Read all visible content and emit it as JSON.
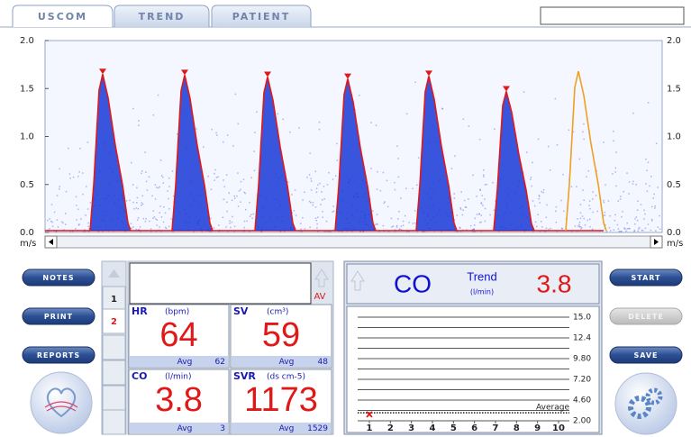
{
  "tabs": [
    "USCOM",
    "TREND",
    "PATIENT"
  ],
  "doppler": {
    "ylim": [
      0,
      2
    ],
    "yticks": [
      {
        "value": 0,
        "label": "0.0"
      },
      {
        "value": 0.5,
        "label": "0.5"
      },
      {
        "value": 1,
        "label": "1.0"
      },
      {
        "value": 1.5,
        "label": "1.5"
      },
      {
        "value": 2,
        "label": "2.0"
      }
    ],
    "unit": "m/s",
    "peaks": [
      1.65,
      1.64,
      1.62,
      1.6,
      1.63,
      1.47,
      1.68
    ],
    "envelope_color": "#e01818",
    "current_color": "#f0a020",
    "spectrum_color": "#1838d8"
  },
  "buttons_left": [
    "NOTES",
    "PRINT",
    "REPORTS"
  ],
  "buttons_right": [
    "START",
    "DELETE",
    "SAVE"
  ],
  "beat_list": [
    1,
    2
  ],
  "flow_label": "AV",
  "params": [
    {
      "name": "HR",
      "unit": "(bpm)",
      "value": 64,
      "avg_label": "Avg",
      "avg": 62
    },
    {
      "name": "SV",
      "unit": "(cm³)",
      "value": 59,
      "avg_label": "Avg",
      "avg": 48
    },
    {
      "name": "CO",
      "unit": "(l/min)",
      "value": 3.8,
      "avg_label": "Avg",
      "avg": 3
    },
    {
      "name": "SVR",
      "unit": "(ds cm-5)",
      "value": 1173,
      "avg_label": "Avg",
      "avg": 1529
    }
  ],
  "trend": {
    "param": "CO",
    "label": "Trend",
    "unit": "(l/min)",
    "value": 3.8,
    "ylim": [
      2,
      15
    ],
    "yticks": [
      {
        "value": 15,
        "label": "15.0"
      },
      12.4,
      {
        "value": 9.8,
        "label": "9.80"
      },
      {
        "value": 7.2,
        "label": "7.20"
      },
      {
        "value": 4.6,
        "label": "4.60"
      },
      {
        "value": 2,
        "label": "2.00"
      }
    ],
    "xticks": [
      1,
      2,
      3,
      4,
      5,
      6,
      7,
      8,
      9,
      10
    ],
    "average_label": "Average",
    "average": 3,
    "x": [
      1
    ],
    "values": [
      2.8
    ],
    "point_color": "#e01818"
  }
}
